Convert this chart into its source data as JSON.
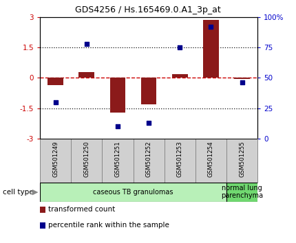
{
  "title": "GDS4256 / Hs.165469.0.A1_3p_at",
  "samples": [
    "GSM501249",
    "GSM501250",
    "GSM501251",
    "GSM501252",
    "GSM501253",
    "GSM501254",
    "GSM501255"
  ],
  "transformed_count": [
    -0.35,
    0.28,
    -1.72,
    -1.3,
    0.18,
    2.85,
    -0.07
  ],
  "percentile_rank": [
    30,
    78,
    10,
    13,
    75,
    92,
    46
  ],
  "ylim_left": [
    -3,
    3
  ],
  "ylim_right": [
    0,
    100
  ],
  "bar_color": "#8B1A1A",
  "dot_color": "#00008B",
  "zero_line_color": "#CC0000",
  "dotted_line_color": "#111111",
  "left_yticks": [
    -3,
    -1.5,
    0,
    1.5,
    3
  ],
  "left_yticklabels": [
    "-3",
    "-1.5",
    "0",
    "1.5",
    "3"
  ],
  "right_yticks": [
    0,
    25,
    50,
    75,
    100
  ],
  "right_yticklabels": [
    "0",
    "25",
    "50",
    "75",
    "100%"
  ],
  "cell_type_groups": [
    {
      "label": "caseous TB granulomas",
      "samples_count": 6,
      "color": "#b8f0b8"
    },
    {
      "label": "normal lung\nparenchyma",
      "samples_count": 1,
      "color": "#70d870"
    }
  ],
  "cell_type_label": "cell type",
  "legend_bar_label": "transformed count",
  "legend_dot_label": "percentile rank within the sample",
  "background_color": "#ffffff",
  "axis_label_color_left": "#CC0000",
  "axis_label_color_right": "#0000CC",
  "sample_box_color": "#d0d0d0",
  "sample_box_edge": "#888888"
}
